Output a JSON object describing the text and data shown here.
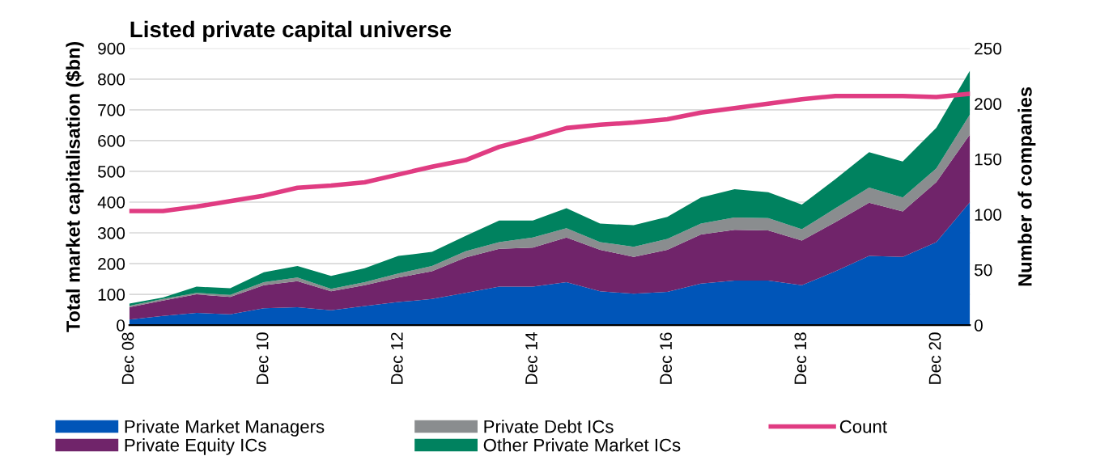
{
  "chart_data": {
    "type": "area",
    "stacked": true,
    "title": "Listed private capital universe",
    "ylabel": "Total market capitalisation ($bn)",
    "y2label": "Number of companies",
    "categories": [
      "Dec 08",
      null,
      null,
      null,
      "Dec 10",
      null,
      null,
      null,
      "Dec 12",
      null,
      null,
      null,
      "Dec 14",
      null,
      null,
      null,
      "Dec 16",
      null,
      null,
      null,
      "Dec 18",
      null,
      null,
      null,
      "Dec 20",
      null
    ],
    "series": [
      {
        "name": "Private Market Managers",
        "color": "#0055b8",
        "values": [
          18,
          30,
          40,
          35,
          55,
          58,
          48,
          62,
          75,
          85,
          105,
          125,
          125,
          140,
          110,
          102,
          108,
          135,
          145,
          145,
          130,
          175,
          225,
          222,
          270,
          400
        ]
      },
      {
        "name": "Private Equity ICs",
        "color": "#70246a",
        "values": [
          40,
          50,
          60,
          57,
          75,
          85,
          62,
          68,
          80,
          90,
          115,
          123,
          127,
          145,
          135,
          120,
          137,
          160,
          165,
          163,
          145,
          160,
          173,
          148,
          195,
          220
        ]
      },
      {
        "name": "Private Debt ICs",
        "color": "#8a8d8f",
        "values": [
          5,
          5,
          5,
          6,
          10,
          12,
          8,
          10,
          13,
          17,
          20,
          22,
          33,
          30,
          25,
          33,
          35,
          35,
          40,
          40,
          37,
          45,
          49,
          45,
          45,
          65
        ]
      },
      {
        "name": "Other Private Market ICs",
        "color": "#00825f",
        "values": [
          7,
          5,
          20,
          22,
          32,
          37,
          42,
          45,
          57,
          46,
          50,
          70,
          55,
          65,
          60,
          70,
          72,
          85,
          92,
          84,
          80,
          95,
          115,
          117,
          132,
          143
        ]
      },
      {
        "name": "Count",
        "color": "#e03c82",
        "type": "line",
        "axis": "y2",
        "values": [
          103,
          103,
          107,
          112,
          117,
          124,
          126,
          129,
          136,
          143,
          149,
          161,
          169,
          178,
          181,
          183,
          186,
          192,
          196,
          200,
          204,
          207,
          207,
          207,
          206,
          209
        ]
      }
    ],
    "ylim": [
      0,
      900
    ],
    "yticks": [
      0,
      100,
      200,
      300,
      400,
      500,
      600,
      700,
      800,
      900
    ],
    "y2lim": [
      0,
      250
    ],
    "y2ticks": [
      0,
      50,
      100,
      150,
      200,
      250
    ],
    "grid": "y",
    "legend": "bottom"
  }
}
